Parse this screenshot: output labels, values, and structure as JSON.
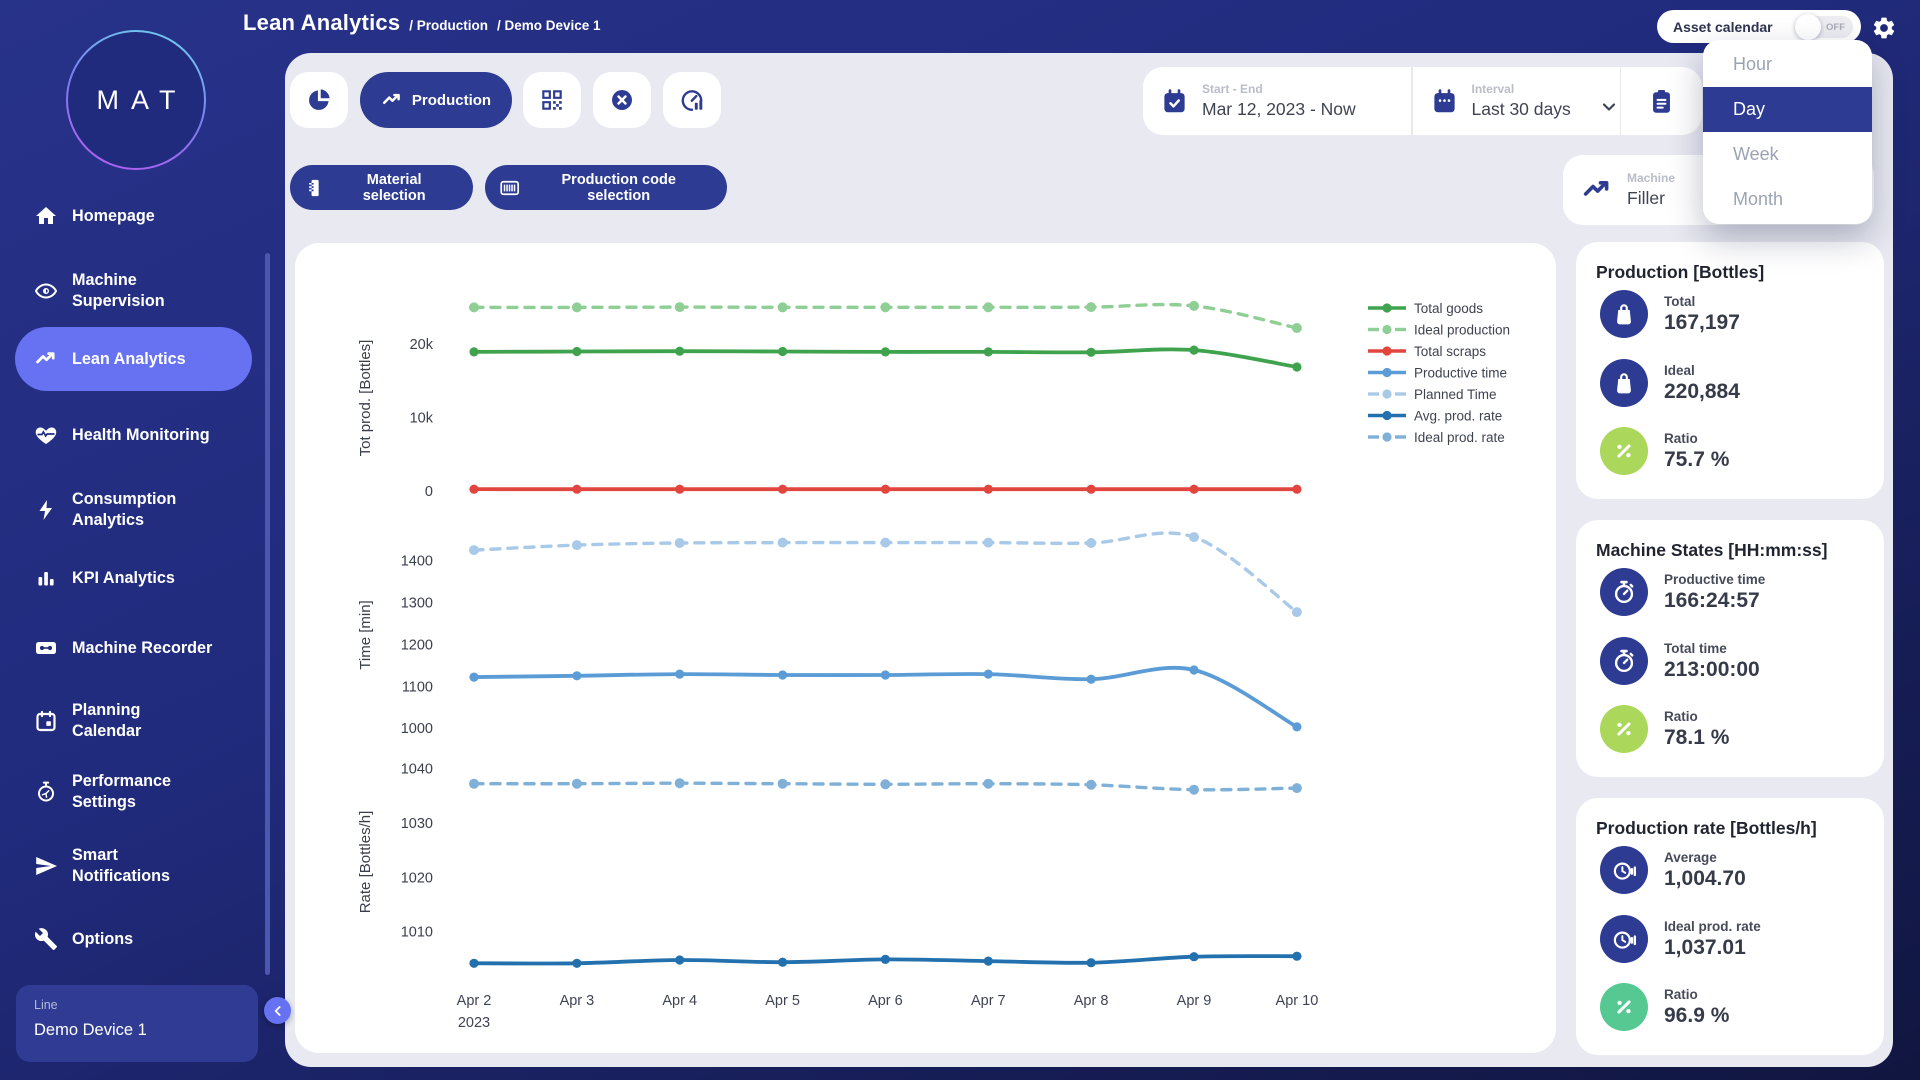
{
  "colors": {
    "canvas_navy": "#212b7d",
    "content_bg": "#e8e9f1",
    "navy": "#2d3b92",
    "active_item": "#6672f2",
    "lime": "#abd75a",
    "mint": "#56c992",
    "text_dark": "#3f4454",
    "text_gray": "#b9bdc9"
  },
  "header": {
    "app_title": "Lean Analytics",
    "separator": "/",
    "breadcrumb": [
      "Production",
      "Demo Device 1"
    ],
    "asset_calendar": {
      "label": "Asset calendar",
      "state": "OFF"
    }
  },
  "interval_menu": {
    "options": [
      "Hour",
      "Day",
      "Week",
      "Month"
    ],
    "selected": "Day"
  },
  "sidebar": {
    "logo_text": "MAT",
    "items": [
      {
        "label": "Homepage",
        "icon": "home",
        "active": false
      },
      {
        "label": "Machine Supervision",
        "lines": [
          "Machine",
          "Supervision"
        ],
        "icon": "eye",
        "active": false
      },
      {
        "label": "Lean Analytics",
        "icon": "trend",
        "active": true
      },
      {
        "label": "Health Monitoring",
        "icon": "heart",
        "active": false
      },
      {
        "label": "Consumption Analytics",
        "lines": [
          "Consumption",
          "Analytics"
        ],
        "icon": "bolt",
        "active": false
      },
      {
        "label": "KPI Analytics",
        "icon": "bars",
        "active": false
      },
      {
        "label": "Machine Recorder",
        "icon": "cassette",
        "active": false
      },
      {
        "label": "Planning Calendar",
        "lines": [
          "Planning",
          "Calendar"
        ],
        "icon": "calendar",
        "active": false
      },
      {
        "label": "Performance Settings",
        "lines": [
          "Performance",
          "Settings"
        ],
        "icon": "timer",
        "active": false
      },
      {
        "label": "Smart Notifications",
        "lines": [
          "Smart",
          "Notifications"
        ],
        "icon": "send",
        "active": false
      },
      {
        "label": "Options",
        "icon": "wrench",
        "active": false
      }
    ],
    "device_panel": {
      "label": "Line",
      "value": "Demo Device 1"
    }
  },
  "toolbar": {
    "tabs": [
      {
        "name": "overview",
        "icon": "pie",
        "label": "",
        "active": false
      },
      {
        "name": "production",
        "icon": "trend",
        "label": "Production",
        "active": true
      },
      {
        "name": "codes",
        "icon": "qr",
        "label": "",
        "active": false
      },
      {
        "name": "clear",
        "icon": "xcircle",
        "label": "",
        "active": false
      },
      {
        "name": "performance",
        "icon": "gauge",
        "label": "",
        "active": false
      }
    ],
    "filters": [
      {
        "name": "material-selection",
        "icon": "material",
        "label": "Material selection"
      },
      {
        "name": "production-code-selection",
        "icon": "barcode",
        "label": "Production code selection"
      }
    ],
    "date_range": {
      "label": "Start - End",
      "value": "Mar 12, 2023 - Now"
    },
    "interval": {
      "label": "Interval",
      "value": "Last 30 days"
    },
    "machine_card": {
      "label": "Machine",
      "value": "Filler"
    }
  },
  "stat_cards": [
    {
      "title": "Production [Bottles]",
      "rows": [
        {
          "icon": "bag",
          "icon_bg": "navy",
          "label": "Total",
          "value": "167,197"
        },
        {
          "icon": "bag",
          "icon_bg": "navy",
          "label": "Ideal",
          "value": "220,884"
        },
        {
          "icon": "percent",
          "icon_bg": "lime",
          "label": "Ratio",
          "value": "75.7 %"
        }
      ]
    },
    {
      "title": "Machine States [HH:mm:ss]",
      "rows": [
        {
          "icon": "stopwatch",
          "icon_bg": "navy",
          "label": "Productive time",
          "value": "166:24:57"
        },
        {
          "icon": "stopwatch",
          "icon_bg": "navy",
          "label": "Total time",
          "value": "213:00:00"
        },
        {
          "icon": "percent",
          "icon_bg": "lime",
          "label": "Ratio",
          "value": "78.1 %"
        }
      ]
    },
    {
      "title": "Production rate [Bottles/h]",
      "rows": [
        {
          "icon": "clockspeed",
          "icon_bg": "navy",
          "label": "Average",
          "value": "1,004.70"
        },
        {
          "icon": "clockspeed",
          "icon_bg": "navy",
          "label": "Ideal prod. rate",
          "value": "1,037.01"
        },
        {
          "icon": "percent",
          "icon_bg": "mint",
          "label": "Ratio",
          "value": "96.9 %"
        }
      ]
    }
  ],
  "chart_data": {
    "type": "line",
    "x": [
      "Apr 2",
      "Apr 3",
      "Apr 4",
      "Apr 5",
      "Apr 6",
      "Apr 7",
      "Apr 8",
      "Apr 9",
      "Apr 10"
    ],
    "x_year_label": "2023",
    "grid": false,
    "legend_position": "top-right",
    "panels": [
      {
        "ylabel": "Tot prod. [Bottles]",
        "yticks": [
          {
            "label": "20k",
            "value": 20000
          },
          {
            "label": "10k",
            "value": 10000
          },
          {
            "label": "0",
            "value": 0
          }
        ],
        "series": [
          {
            "name": "Ideal production",
            "color": "#8fcf96",
            "dash": true,
            "values": [
              24950,
              24950,
              24980,
              24960,
              24960,
              24960,
              24980,
              25150,
              22150
            ]
          },
          {
            "name": "Total goods",
            "color": "#3fa34d",
            "dash": false,
            "values": [
              18900,
              18950,
              19000,
              18950,
              18900,
              18900,
              18850,
              19150,
              16850
            ]
          },
          {
            "name": "Total scraps",
            "color": "#e2453e",
            "dash": false,
            "values": [
              250,
              250,
              250,
              250,
              250,
              250,
              250,
              250,
              250
            ]
          }
        ]
      },
      {
        "ylabel": "Time [min]",
        "yticks": [
          {
            "label": "1400",
            "value": 1400
          },
          {
            "label": "1300",
            "value": 1300
          },
          {
            "label": "1200",
            "value": 1200
          },
          {
            "label": "1100",
            "value": 1100
          },
          {
            "label": "1000",
            "value": 1000
          }
        ],
        "series": [
          {
            "name": "Planned Time",
            "color": "#a9c9e8",
            "dash": true,
            "values": [
              1425,
              1437,
              1442,
              1443,
              1443,
              1443,
              1442,
              1456,
              1277
            ]
          },
          {
            "name": "Productive time",
            "color": "#5b9cd6",
            "dash": false,
            "values": [
              1122,
              1125,
              1129,
              1127,
              1127,
              1129,
              1117,
              1139,
              1003
            ]
          }
        ]
      },
      {
        "ylabel": "Rate [Bottles/h]",
        "yticks": [
          {
            "label": "1040",
            "value": 1040
          },
          {
            "label": "1030",
            "value": 1030
          },
          {
            "label": "1020",
            "value": 1020
          },
          {
            "label": "1010",
            "value": 1010
          }
        ],
        "series": [
          {
            "name": "Ideal prod. rate",
            "color": "#7fb0d8",
            "dash": true,
            "values": [
              1037.2,
              1037.2,
              1037.3,
              1037.2,
              1037.1,
              1037.2,
              1037.0,
              1036.1,
              1036.4
            ]
          },
          {
            "name": "Avg. prod. rate",
            "color": "#2270ad",
            "dash": false,
            "values": [
              1004.2,
              1004.2,
              1004.8,
              1004.4,
              1004.9,
              1004.6,
              1004.3,
              1005.4,
              1005.5
            ]
          }
        ]
      }
    ],
    "legend": [
      {
        "label": "Total goods",
        "color": "#3fa34d",
        "dash": false
      },
      {
        "label": "Ideal production",
        "color": "#8fcf96",
        "dash": true
      },
      {
        "label": "Total scraps",
        "color": "#e2453e",
        "dash": false
      },
      {
        "label": "Productive time",
        "color": "#5b9cd6",
        "dash": false
      },
      {
        "label": "Planned Time",
        "color": "#a9c9e8",
        "dash": true
      },
      {
        "label": "Avg. prod. rate",
        "color": "#2270ad",
        "dash": false
      },
      {
        "label": "Ideal prod. rate",
        "color": "#7fb0d8",
        "dash": true
      }
    ]
  }
}
